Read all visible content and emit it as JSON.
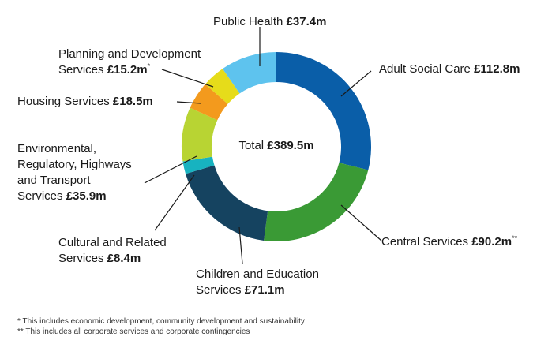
{
  "chart_data": {
    "type": "pie",
    "donut": true,
    "total_label": "Total",
    "total_value": "£389.5m",
    "slices": [
      {
        "name": "Adult Social Care",
        "value": 112.8,
        "value_label": "£112.8m",
        "marker": "",
        "color": "#0a5ea8"
      },
      {
        "name": "Central Services",
        "value": 90.2,
        "value_label": "£90.2m",
        "marker": "**",
        "color": "#3a9a35"
      },
      {
        "name": "Children and Education Services",
        "value": 71.1,
        "value_label": "£71.1m",
        "marker": "",
        "color": "#154360"
      },
      {
        "name": "Cultural and Related Services",
        "value": 8.4,
        "value_label": "£8.4m",
        "marker": "",
        "color": "#17b3c0"
      },
      {
        "name": "Environmental, Regulatory, Highways and Transport Services",
        "value": 35.9,
        "value_label": "£35.9m",
        "marker": "",
        "color": "#b8d433"
      },
      {
        "name": "Housing Services",
        "value": 18.5,
        "value_label": "£18.5m",
        "marker": "",
        "color": "#f39a1d"
      },
      {
        "name": "Planning and Development Services",
        "value": 15.2,
        "value_label": "£15.2m",
        "marker": "*",
        "color": "#e6dc1a"
      },
      {
        "name": "Public Health",
        "value": 37.4,
        "value_label": "£37.4m",
        "marker": "",
        "color": "#5ec3ee"
      }
    ]
  },
  "labels": {
    "public_health": {
      "name": "Public Health",
      "amt": "£37.4m"
    },
    "adult_social_care": {
      "name": "Adult Social Care",
      "amt": "£112.8m"
    },
    "planning": {
      "line1": "Planning and Development",
      "line2": "Services",
      "amt": "£15.2m",
      "mark": "*"
    },
    "housing": {
      "name": "Housing Services",
      "amt": "£18.5m"
    },
    "environmental": {
      "line1": "Environmental,",
      "line2": "Regulatory, Highways",
      "line3": "and Transport",
      "line4": "Services",
      "amt": "£35.9m"
    },
    "cultural": {
      "line1": "Cultural and Related",
      "line2": "Services",
      "amt": "£8.4m"
    },
    "children": {
      "line1": "Children and Education",
      "line2": "Services",
      "amt": "£71.1m"
    },
    "central": {
      "name": "Central Services",
      "amt": "£90.2m",
      "mark": "**"
    }
  },
  "footnotes": [
    "* This includes economic development, community development and sustainability",
    "** This includes all corporate services and corporate contingencies"
  ]
}
